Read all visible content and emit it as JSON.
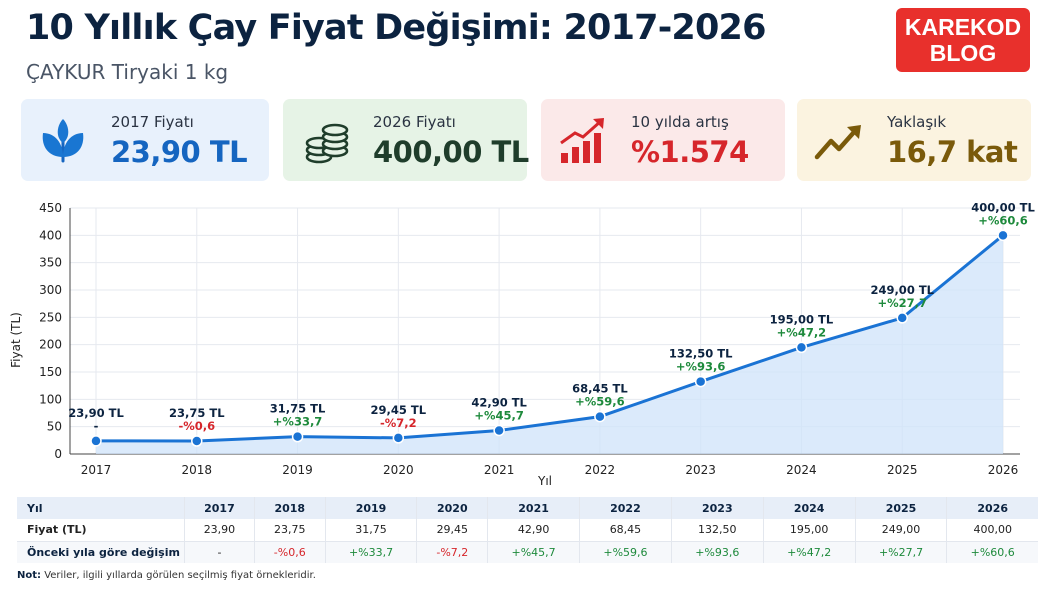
{
  "header": {
    "title": "10 Yıllık Çay Fiyat Değişimi: 2017-2026",
    "subtitle": "ÇAYKUR Tiryaki 1 kg",
    "brand_line1": "KAREKOD",
    "brand_line2": "BLOG"
  },
  "cards": [
    {
      "label": "2017 Fiyatı",
      "value": "23,90 TL",
      "icon": "leaf-icon",
      "color": "#1565c0"
    },
    {
      "label": "2026 Fiyatı",
      "value": "400,00 TL",
      "icon": "coins-icon",
      "color": "#1f3d2b"
    },
    {
      "label": "10 yılda artış",
      "value": "%1.574",
      "icon": "rising-bars-icon",
      "color": "#d6262b"
    },
    {
      "label": "Yaklaşık",
      "value": "16,7 kat",
      "icon": "trend-up-icon",
      "color": "#7a5a0a"
    }
  ],
  "chart_data": {
    "type": "line",
    "categories": [
      "2017",
      "2018",
      "2019",
      "2020",
      "2021",
      "2022",
      "2023",
      "2024",
      "2025",
      "2026"
    ],
    "values": [
      23.9,
      23.75,
      31.75,
      29.45,
      42.9,
      68.45,
      132.5,
      195.0,
      249.0,
      400.0
    ],
    "point_labels": [
      "23,90 TL",
      "23,75 TL",
      "31,75 TL",
      "29,45 TL",
      "42,90 TL",
      "68,45 TL",
      "132,50 TL",
      "195,00 TL",
      "249,00 TL",
      "400,00 TL"
    ],
    "change_labels": [
      "-",
      "-%0,6",
      "+%33,7",
      "-%7,2",
      "+%45,7",
      "+%59,6",
      "+%93,6",
      "+%47,2",
      "+%27,7",
      "+%60,6"
    ],
    "xlabel": "Yıl",
    "ylabel": "Fiyat (TL)",
    "ylim": [
      0,
      450
    ],
    "yticks": [
      0,
      50,
      100,
      150,
      200,
      250,
      300,
      350,
      400,
      450
    ],
    "grid": true,
    "line_color": "#1a73d4",
    "fill_color": "#cfe3fa",
    "positive_color": "#1e8a3c",
    "negative_color": "#d6262b"
  },
  "table": {
    "header": [
      "Yıl",
      "2017",
      "2018",
      "2019",
      "2020",
      "2021",
      "2022",
      "2023",
      "2024",
      "2025",
      "2026"
    ],
    "price_row": [
      "Fiyat (TL)",
      "23,90",
      "23,75",
      "31,75",
      "29,45",
      "42,90",
      "68,45",
      "132,50",
      "195,00",
      "249,00",
      "400,00"
    ],
    "change_row": [
      "Önceki yıla göre değişim",
      "-",
      "-%0,6",
      "+%33,7",
      "-%7,2",
      "+%45,7",
      "+%59,6",
      "+%93,6",
      "+%47,2",
      "+%27,7",
      "+%60,6"
    ]
  },
  "note": {
    "label": "Not:",
    "text": "Veriler, ilgili yıllarda görülen seçilmiş fiyat örnekleridir."
  }
}
